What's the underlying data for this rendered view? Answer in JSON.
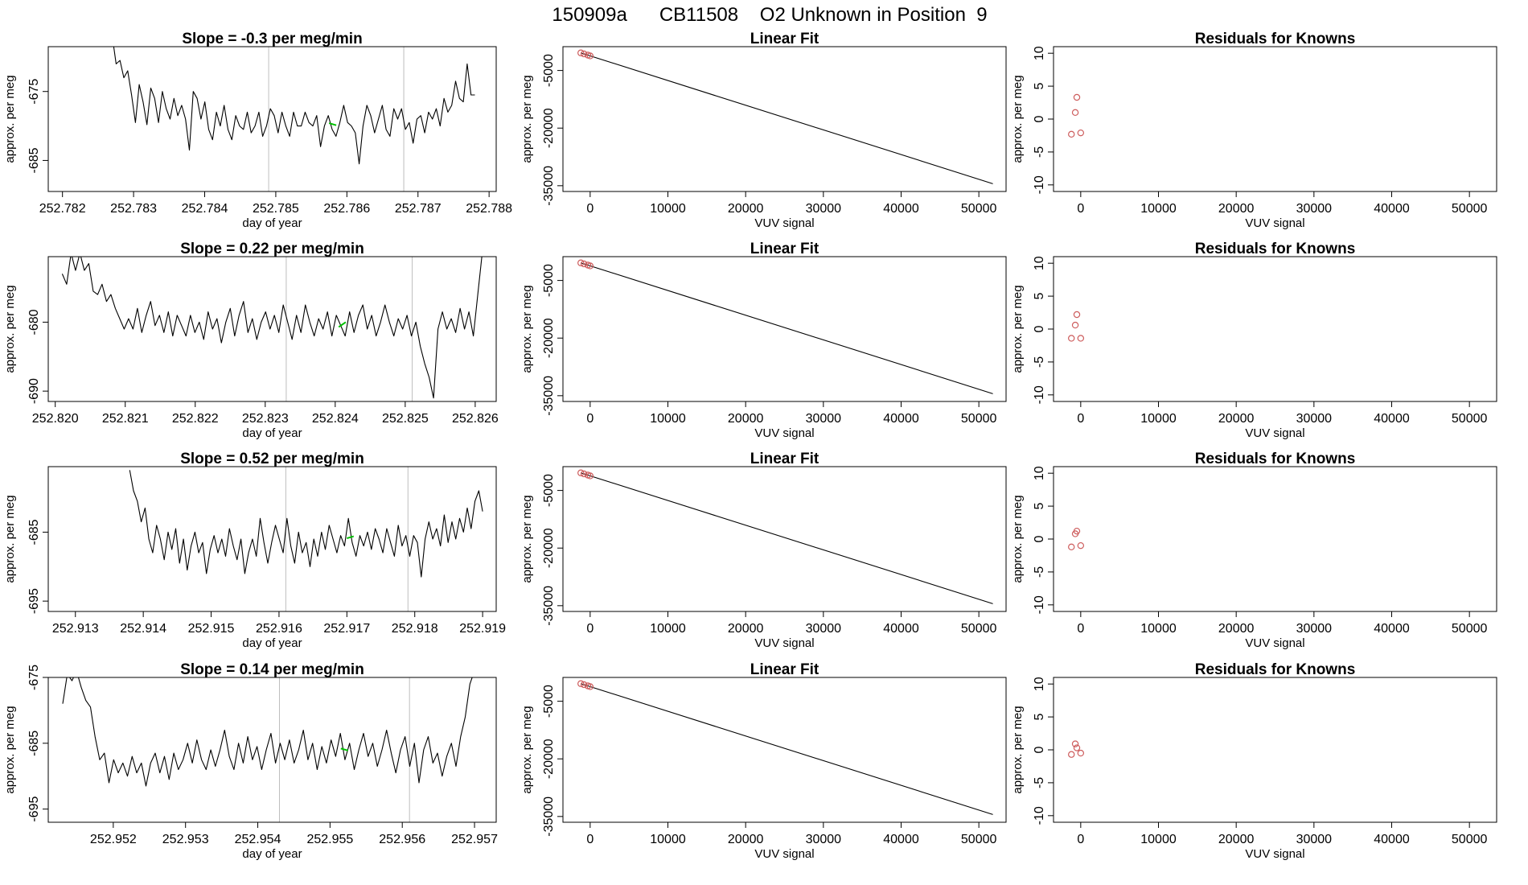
{
  "figure": {
    "title": "150909a      CB11508    O2 Unknown in Position  9",
    "colors": {
      "trace": "#000000",
      "fit_line": "#000000",
      "gridline": "#bebebe",
      "highlight": "#00c000",
      "points": "#cd5c5c",
      "axis": "#000000"
    }
  },
  "chart_data": [
    {
      "type": "line",
      "row": 0,
      "col": 0,
      "title": "Slope =  -0.3  per meg/min",
      "xlabel": "day of year",
      "ylabel": "approx. per meg",
      "xlim": [
        252.7818,
        252.7881
      ],
      "ylim": [
        -689.5,
        -668.5
      ],
      "xticks": [
        252.782,
        252.783,
        252.784,
        252.785,
        252.786,
        252.787,
        252.788
      ],
      "xtick_labels": [
        "252.782",
        "252.783",
        "252.784",
        "252.785",
        "252.786",
        "252.787",
        "252.788"
      ],
      "yticks": [
        -675,
        -685
      ],
      "ytick_labels": [
        "-675",
        "-685"
      ],
      "vlines": [
        252.7849,
        252.7868
      ],
      "trace_x_range": [
        252.7827,
        252.7878
      ],
      "trace_y": [
        -667.0,
        -671.0,
        -670.5,
        -673.0,
        -672.0,
        -675.5,
        -679.5,
        -674.0,
        -676.5,
        -679.8,
        -674.5,
        -676.0,
        -679.5,
        -675.0,
        -677.5,
        -679.0,
        -676.0,
        -678.5,
        -677.0,
        -679.0,
        -683.5,
        -675.0,
        -676.0,
        -679.0,
        -676.5,
        -680.5,
        -682.0,
        -678.0,
        -680.0,
        -677.0,
        -680.5,
        -682.0,
        -678.5,
        -680.0,
        -680.5,
        -678.0,
        -681.0,
        -680.0,
        -678.0,
        -681.5,
        -680.0,
        -677.5,
        -678.5,
        -681.0,
        -678.0,
        -680.0,
        -681.5,
        -678.0,
        -680.0,
        -680.0,
        -678.0,
        -679.5,
        -680.0,
        -678.5,
        -683.0,
        -680.0,
        -678.5,
        -680.5,
        -681.5,
        -679.5,
        -677.0,
        -679.5,
        -680.0,
        -681.0,
        -685.5,
        -680.0,
        -677.0,
        -678.5,
        -681.0,
        -679.0,
        -677.0,
        -680.5,
        -681.5,
        -677.5,
        -679.0,
        -677.5,
        -680.5,
        -679.5,
        -682.5,
        -679.0,
        -678.5,
        -681.0,
        -678.0,
        -679.0,
        -677.5,
        -680.0,
        -676.0,
        -678.0,
        -677.0,
        -673.5,
        -676.0,
        -676.5,
        -671.0,
        -675.5,
        -675.5
      ],
      "highlight": {
        "x": [
          252.78575,
          252.78585
        ],
        "y": [
          -679.6,
          -679.9
        ]
      }
    },
    {
      "type": "scatter",
      "row": 0,
      "col": 1,
      "title": "Linear Fit",
      "xlabel": "VUV signal",
      "ylabel": "approx. per meg",
      "xlim": [
        -3500,
        53500
      ],
      "ylim": [
        -36500,
        1200
      ],
      "xticks": [
        0,
        10000,
        20000,
        30000,
        40000,
        50000
      ],
      "xtick_labels": [
        "0",
        "10000",
        "20000",
        "30000",
        "40000",
        "50000"
      ],
      "yticks": [
        -5000,
        -20000,
        -35000
      ],
      "ytick_labels": [
        "-5000",
        "-20000",
        "-35000"
      ],
      "fit_line": {
        "x": [
          -1200,
          51800
        ],
        "y": [
          -420,
          -34480
        ]
      },
      "points": {
        "x": [
          -1200,
          -800,
          -300,
          0
        ],
        "y": [
          -420,
          -680,
          -1000,
          -1200
        ]
      }
    },
    {
      "type": "scatter",
      "row": 0,
      "col": 2,
      "title": "Residuals for Knowns",
      "xlabel": "VUV signal",
      "ylabel": "approx. per meg",
      "xlim": [
        -3500,
        53500
      ],
      "ylim": [
        -11,
        11
      ],
      "xticks": [
        0,
        10000,
        20000,
        30000,
        40000,
        50000
      ],
      "xtick_labels": [
        "0",
        "10000",
        "20000",
        "30000",
        "40000",
        "50000"
      ],
      "yticks": [
        10,
        5,
        0,
        -5,
        -10
      ],
      "ytick_labels": [
        "10",
        "5",
        "0",
        "-5",
        "-10"
      ],
      "points": {
        "x": [
          -1200,
          -700,
          -500,
          0
        ],
        "y": [
          -2.3,
          1.0,
          3.3,
          -2.1
        ]
      }
    },
    {
      "type": "line",
      "row": 1,
      "col": 0,
      "title": "Slope =  0.22  per meg/min",
      "xlabel": "day of year",
      "ylabel": "approx. per meg",
      "xlim": [
        252.8199,
        252.8263
      ],
      "ylim": [
        -691.5,
        -670.5
      ],
      "xticks": [
        252.82,
        252.821,
        252.822,
        252.823,
        252.824,
        252.825,
        252.826
      ],
      "xtick_labels": [
        "252.820",
        "252.821",
        "252.822",
        "252.823",
        "252.824",
        "252.825",
        "252.826"
      ],
      "yticks": [
        -680,
        -690
      ],
      "ytick_labels": [
        "-680",
        "-690"
      ],
      "vlines": [
        252.8233,
        252.8251
      ],
      "trace_x_range": [
        252.8201,
        252.8261
      ],
      "trace_y": [
        -673.0,
        -674.5,
        -670.0,
        -672.5,
        -670.0,
        -672.5,
        -671.5,
        -675.5,
        -676.0,
        -674.5,
        -677.0,
        -676.0,
        -678.0,
        -679.5,
        -681.0,
        -679.5,
        -681.0,
        -678.0,
        -681.5,
        -679.0,
        -677.0,
        -680.5,
        -679.0,
        -681.5,
        -678.5,
        -682.0,
        -679.0,
        -680.5,
        -682.0,
        -679.0,
        -681.5,
        -680.0,
        -682.5,
        -678.5,
        -681.0,
        -679.5,
        -683.0,
        -680.0,
        -678.0,
        -682.0,
        -679.0,
        -677.0,
        -681.5,
        -679.5,
        -682.5,
        -680.0,
        -678.5,
        -681.0,
        -679.0,
        -681.5,
        -677.5,
        -680.0,
        -682.5,
        -679.0,
        -681.5,
        -677.5,
        -680.0,
        -682.0,
        -679.5,
        -681.0,
        -678.5,
        -682.0,
        -679.0,
        -680.5,
        -682.0,
        -678.5,
        -681.5,
        -679.0,
        -677.5,
        -681.0,
        -679.0,
        -682.0,
        -680.0,
        -677.5,
        -680.0,
        -682.0,
        -679.5,
        -681.0,
        -679.0,
        -682.0,
        -680.0,
        -683.5,
        -686.0,
        -688.0,
        -691.0,
        -681.0,
        -678.5,
        -681.0,
        -679.5,
        -681.5,
        -678.0,
        -681.0,
        -678.5,
        -682.0,
        -676.0,
        -670.0
      ],
      "highlight": {
        "x": [
          252.82405,
          252.82415
        ],
        "y": [
          -680.7,
          -680.0
        ]
      }
    },
    {
      "type": "scatter",
      "row": 1,
      "col": 1,
      "title": "Linear Fit",
      "xlabel": "VUV signal",
      "ylabel": "approx. per meg",
      "xlim": [
        -3500,
        53500
      ],
      "ylim": [
        -36500,
        1200
      ],
      "xticks": [
        0,
        10000,
        20000,
        30000,
        40000,
        50000
      ],
      "xtick_labels": [
        "0",
        "10000",
        "20000",
        "30000",
        "40000",
        "50000"
      ],
      "yticks": [
        -5000,
        -20000,
        -35000
      ],
      "ytick_labels": [
        "-5000",
        "-20000",
        "-35000"
      ],
      "fit_line": {
        "x": [
          -1200,
          51800
        ],
        "y": [
          -420,
          -34480
        ]
      },
      "points": {
        "x": [
          -1200,
          -800,
          -300,
          0
        ],
        "y": [
          -420,
          -680,
          -1000,
          -1200
        ]
      }
    },
    {
      "type": "scatter",
      "row": 1,
      "col": 2,
      "title": "Residuals for Knowns",
      "xlabel": "VUV signal",
      "ylabel": "approx. per meg",
      "xlim": [
        -3500,
        53500
      ],
      "ylim": [
        -11,
        11
      ],
      "xticks": [
        0,
        10000,
        20000,
        30000,
        40000,
        50000
      ],
      "xtick_labels": [
        "0",
        "10000",
        "20000",
        "30000",
        "40000",
        "50000"
      ],
      "yticks": [
        10,
        5,
        0,
        -5,
        -10
      ],
      "ytick_labels": [
        "10",
        "5",
        "0",
        "-5",
        "-10"
      ],
      "points": {
        "x": [
          -1200,
          -700,
          -500,
          0
        ],
        "y": [
          -1.4,
          0.6,
          2.2,
          -1.4
        ]
      }
    },
    {
      "type": "line",
      "row": 2,
      "col": 0,
      "title": "Slope =  0.52  per meg/min",
      "xlabel": "day of year",
      "ylabel": "approx. per meg",
      "xlim": [
        252.9126,
        252.9192
      ],
      "ylim": [
        -696.5,
        -675.5
      ],
      "xticks": [
        252.913,
        252.914,
        252.915,
        252.916,
        252.917,
        252.918,
        252.919
      ],
      "xtick_labels": [
        "252.913",
        "252.914",
        "252.915",
        "252.916",
        "252.917",
        "252.918",
        "252.919"
      ],
      "yticks": [
        -685,
        -695
      ],
      "ytick_labels": [
        "-685",
        "-695"
      ],
      "vlines": [
        252.9161,
        252.9179
      ],
      "trace_x_range": [
        252.9138,
        252.919
      ],
      "trace_y": [
        -676.0,
        -679.0,
        -680.5,
        -683.5,
        -681.5,
        -686.0,
        -688.0,
        -684.0,
        -686.0,
        -689.0,
        -685.0,
        -687.5,
        -684.5,
        -689.5,
        -686.0,
        -690.5,
        -687.0,
        -685.0,
        -688.0,
        -686.5,
        -691.0,
        -687.5,
        -685.5,
        -688.0,
        -686.0,
        -688.5,
        -684.5,
        -687.0,
        -689.0,
        -686.0,
        -691.0,
        -688.0,
        -686.0,
        -688.5,
        -683.0,
        -686.5,
        -689.5,
        -686.5,
        -684.0,
        -686.0,
        -688.0,
        -683.0,
        -687.0,
        -689.5,
        -685.0,
        -688.0,
        -686.5,
        -690.0,
        -686.0,
        -688.5,
        -685.0,
        -687.5,
        -684.0,
        -686.0,
        -688.0,
        -685.5,
        -687.0,
        -683.0,
        -686.5,
        -688.5,
        -685.5,
        -687.0,
        -685.0,
        -687.5,
        -684.5,
        -686.0,
        -688.0,
        -684.5,
        -686.5,
        -688.5,
        -684.0,
        -687.0,
        -685.5,
        -688.5,
        -685.5,
        -686.5,
        -691.5,
        -686.0,
        -683.5,
        -686.0,
        -684.5,
        -687.0,
        -682.5,
        -686.5,
        -683.5,
        -686.0,
        -683.0,
        -685.0,
        -681.5,
        -684.5,
        -680.5,
        -679.0,
        -682.0
      ],
      "highlight": {
        "x": [
          252.917,
          252.9171
        ],
        "y": [
          -685.9,
          -685.6
        ]
      }
    },
    {
      "type": "scatter",
      "row": 2,
      "col": 1,
      "title": "Linear Fit",
      "xlabel": "VUV signal",
      "ylabel": "approx. per meg",
      "xlim": [
        -3500,
        53500
      ],
      "ylim": [
        -36500,
        1200
      ],
      "xticks": [
        0,
        10000,
        20000,
        30000,
        40000,
        50000
      ],
      "xtick_labels": [
        "0",
        "10000",
        "20000",
        "30000",
        "40000",
        "50000"
      ],
      "yticks": [
        -5000,
        -20000,
        -35000
      ],
      "ytick_labels": [
        "-5000",
        "-20000",
        "-35000"
      ],
      "fit_line": {
        "x": [
          -1200,
          51800
        ],
        "y": [
          -420,
          -34480
        ]
      },
      "points": {
        "x": [
          -1200,
          -800,
          -300,
          0
        ],
        "y": [
          -420,
          -680,
          -1000,
          -1200
        ]
      }
    },
    {
      "type": "scatter",
      "row": 2,
      "col": 2,
      "title": "Residuals for Knowns",
      "xlabel": "VUV signal",
      "ylabel": "approx. per meg",
      "xlim": [
        -3500,
        53500
      ],
      "ylim": [
        -11,
        11
      ],
      "xticks": [
        0,
        10000,
        20000,
        30000,
        40000,
        50000
      ],
      "xtick_labels": [
        "0",
        "10000",
        "20000",
        "30000",
        "40000",
        "50000"
      ],
      "yticks": [
        10,
        5,
        0,
        -5,
        -10
      ],
      "ytick_labels": [
        "10",
        "5",
        "0",
        "-5",
        "-10"
      ],
      "points": {
        "x": [
          -1200,
          -700,
          -500,
          0
        ],
        "y": [
          -1.2,
          0.8,
          1.2,
          -1.0
        ]
      }
    },
    {
      "type": "line",
      "row": 3,
      "col": 0,
      "title": "Slope =  0.14  per meg/min",
      "xlabel": "day of year",
      "ylabel": "approx. per meg",
      "xlim": [
        252.9511,
        252.9573
      ],
      "ylim": [
        -697,
        -675
      ],
      "xticks": [
        252.952,
        252.953,
        252.954,
        252.955,
        252.956,
        252.957
      ],
      "xtick_labels": [
        "252.952",
        "252.953",
        "252.954",
        "252.955",
        "252.956",
        "252.957"
      ],
      "yticks": [
        -675,
        -685,
        -695
      ],
      "ytick_labels": [
        "-675",
        "-685",
        "-695"
      ],
      "vlines": [
        252.9543,
        252.9561
      ],
      "trace_x_range": [
        252.9513,
        252.957
      ],
      "trace_y": [
        -679.0,
        -674.5,
        -675.5,
        -674.0,
        -676.5,
        -678.5,
        -679.5,
        -684.0,
        -687.5,
        -686.5,
        -691.0,
        -687.5,
        -689.5,
        -688.0,
        -690.0,
        -687.0,
        -689.5,
        -688.0,
        -691.5,
        -688.0,
        -686.5,
        -689.5,
        -687.0,
        -690.5,
        -686.5,
        -689.0,
        -687.5,
        -685.0,
        -688.0,
        -684.5,
        -687.5,
        -689.0,
        -686.0,
        -688.5,
        -686.0,
        -683.0,
        -687.0,
        -689.0,
        -685.0,
        -688.0,
        -684.0,
        -687.5,
        -685.5,
        -689.0,
        -686.0,
        -683.5,
        -688.0,
        -685.0,
        -687.5,
        -684.5,
        -688.0,
        -686.0,
        -683.0,
        -687.5,
        -685.0,
        -689.0,
        -685.5,
        -688.0,
        -684.5,
        -687.0,
        -683.5,
        -687.5,
        -685.0,
        -689.0,
        -686.0,
        -683.5,
        -687.0,
        -685.0,
        -688.5,
        -686.0,
        -683.0,
        -686.5,
        -689.5,
        -686.0,
        -684.0,
        -688.5,
        -685.0,
        -691.0,
        -686.0,
        -684.0,
        -688.0,
        -686.5,
        -690.0,
        -687.0,
        -685.0,
        -688.5,
        -684.0,
        -681.0,
        -676.0,
        -674.0
      ],
      "highlight": {
        "x": [
          252.95515,
          252.95525
        ],
        "y": [
          -685.8,
          -686.1
        ]
      }
    },
    {
      "type": "scatter",
      "row": 3,
      "col": 1,
      "title": "Linear Fit",
      "xlabel": "VUV signal",
      "ylabel": "approx. per meg",
      "xlim": [
        -3500,
        53500
      ],
      "ylim": [
        -36500,
        1200
      ],
      "xticks": [
        0,
        10000,
        20000,
        30000,
        40000,
        50000
      ],
      "xtick_labels": [
        "0",
        "10000",
        "20000",
        "30000",
        "40000",
        "50000"
      ],
      "yticks": [
        -5000,
        -20000,
        -35000
      ],
      "ytick_labels": [
        "-5000",
        "-20000",
        "-35000"
      ],
      "fit_line": {
        "x": [
          -1200,
          51800
        ],
        "y": [
          -420,
          -34480
        ]
      },
      "points": {
        "x": [
          -1200,
          -800,
          -300,
          0
        ],
        "y": [
          -420,
          -680,
          -1000,
          -1200
        ]
      }
    },
    {
      "type": "scatter",
      "row": 3,
      "col": 2,
      "title": "Residuals for Knowns",
      "xlabel": "VUV signal",
      "ylabel": "approx. per meg",
      "xlim": [
        -3500,
        53500
      ],
      "ylim": [
        -11,
        11
      ],
      "xticks": [
        0,
        10000,
        20000,
        30000,
        40000,
        50000
      ],
      "xtick_labels": [
        "0",
        "10000",
        "20000",
        "30000",
        "40000",
        "50000"
      ],
      "yticks": [
        10,
        5,
        0,
        -5,
        -10
      ],
      "ytick_labels": [
        "10",
        "5",
        "0",
        "-5",
        "-10"
      ],
      "points": {
        "x": [
          -1200,
          -700,
          -500,
          0
        ],
        "y": [
          -0.7,
          0.9,
          0.3,
          -0.5
        ]
      }
    }
  ]
}
